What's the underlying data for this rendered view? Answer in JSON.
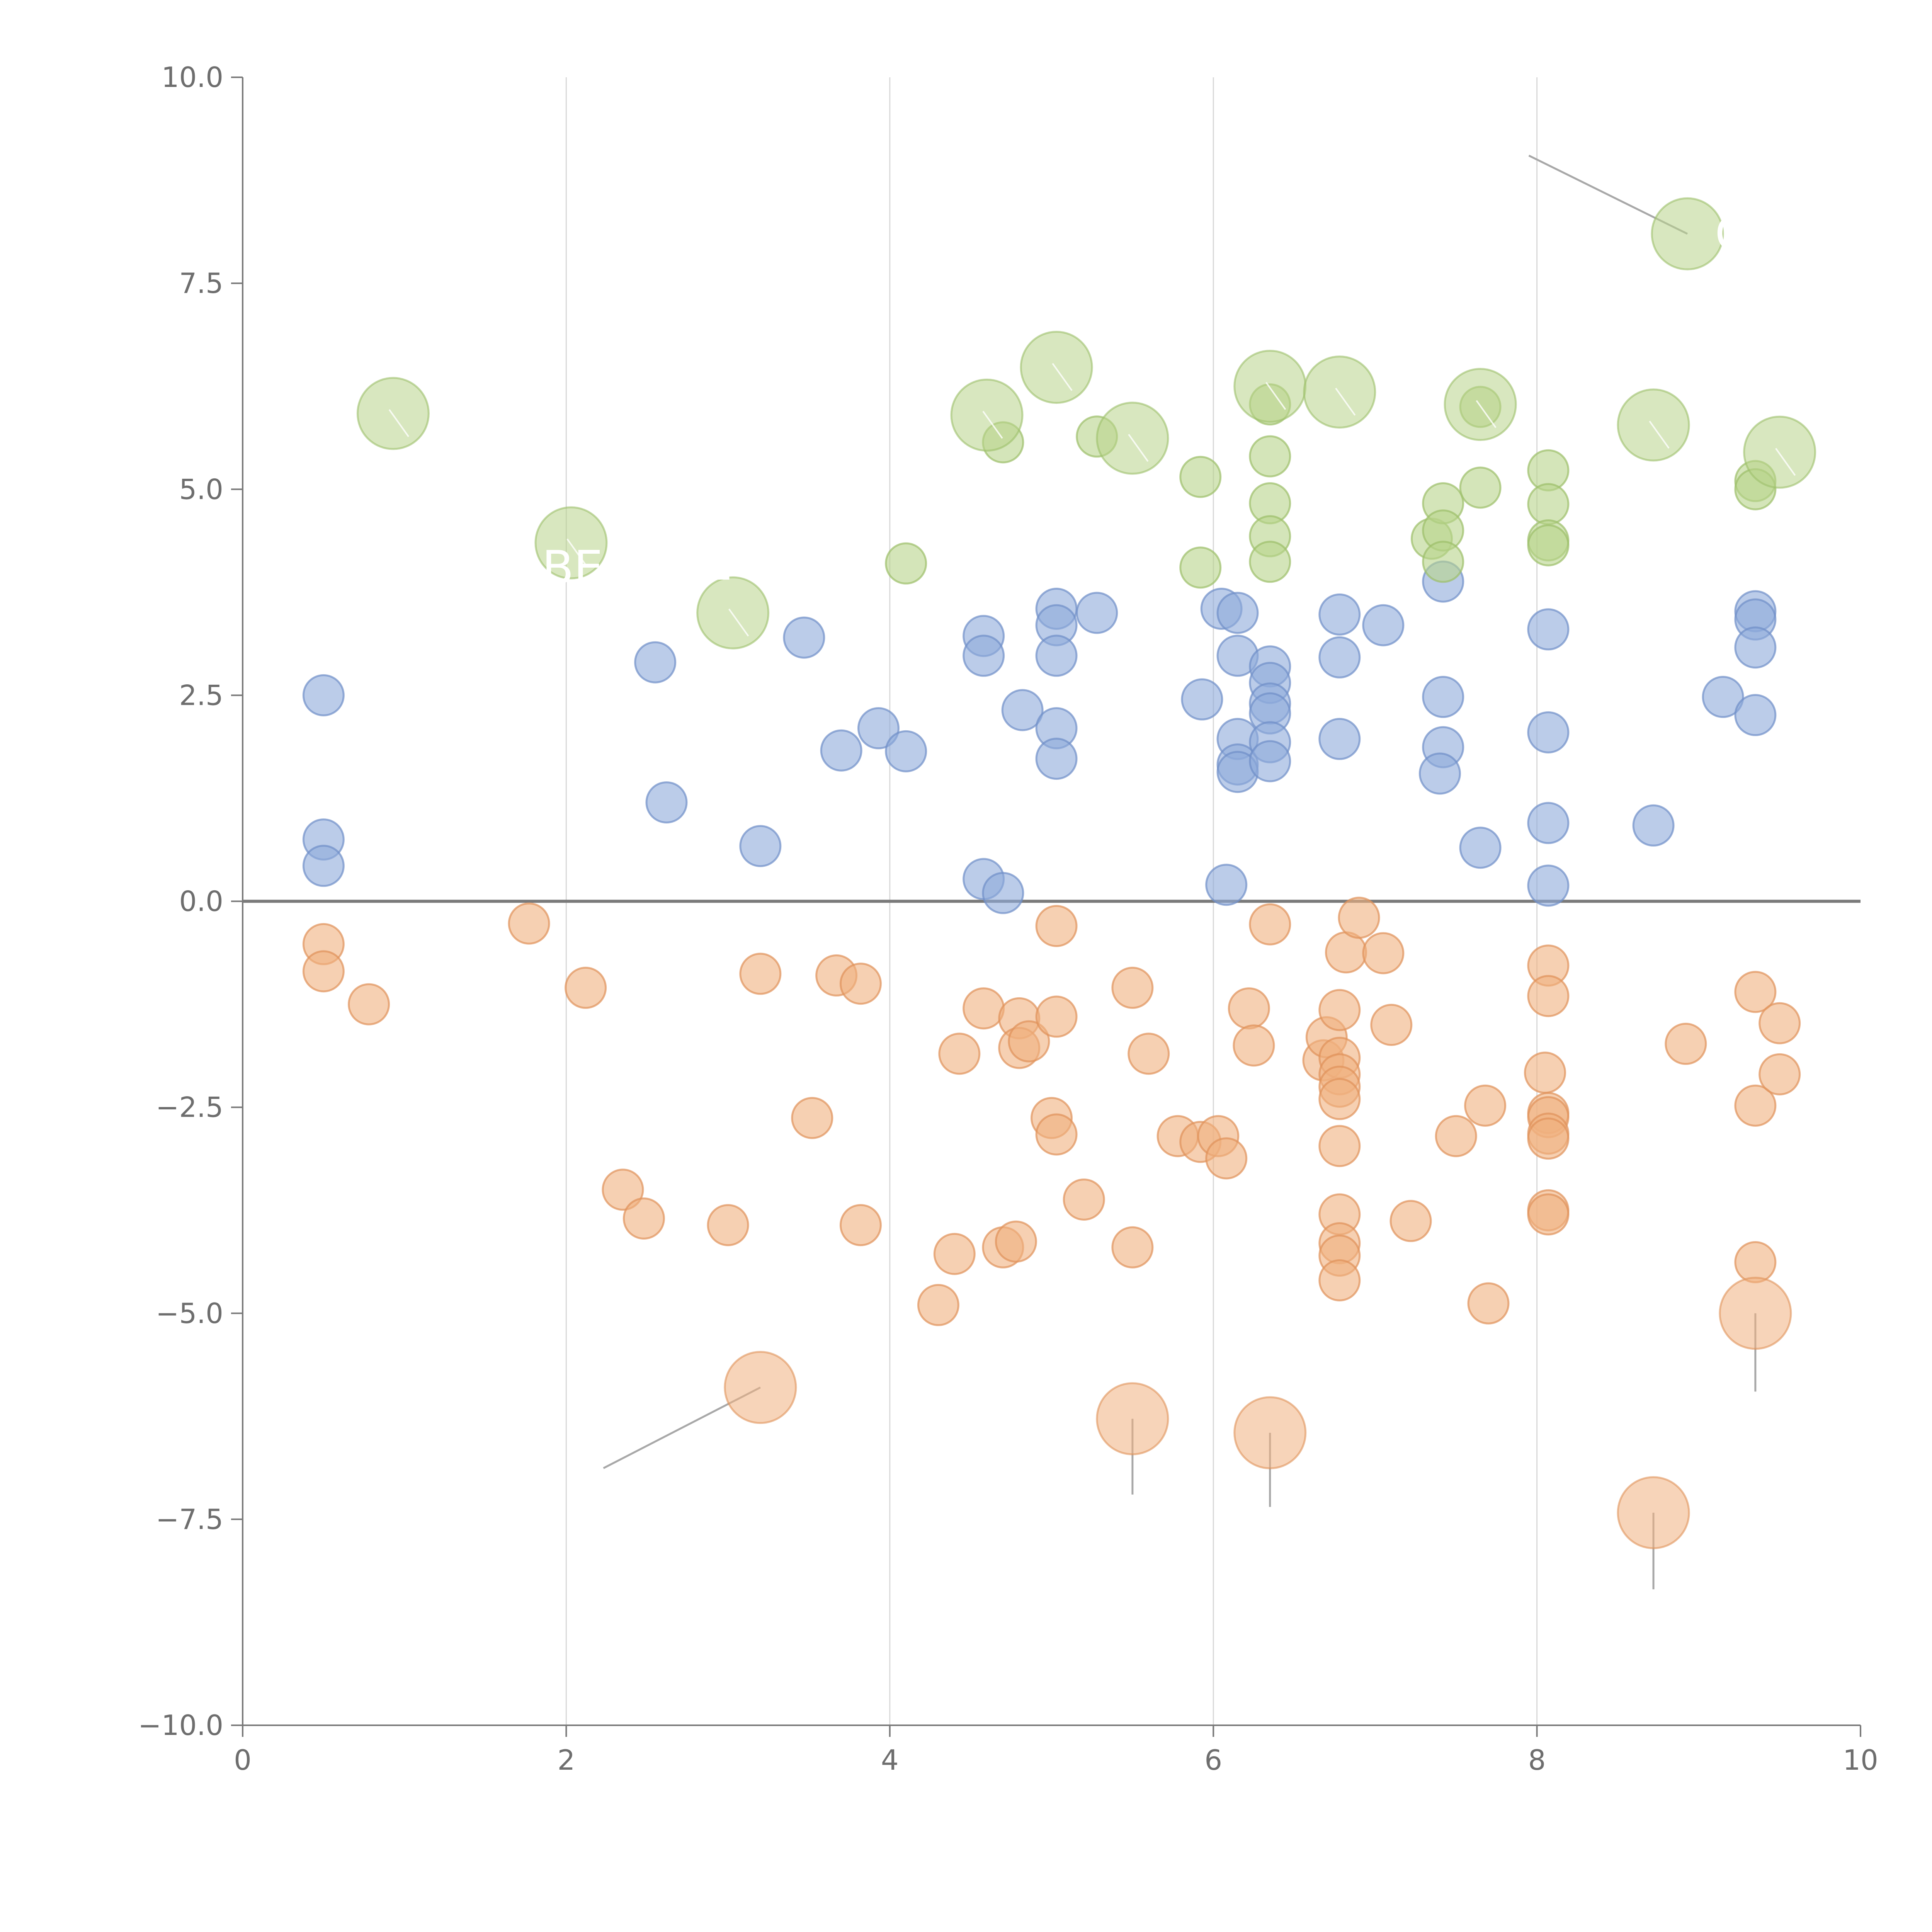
{
  "chart_data": {
    "type": "scatter",
    "title": "",
    "xlabel": "",
    "ylabel": "",
    "xlim": [
      0,
      10
    ],
    "ylim": [
      -10,
      10
    ],
    "x_ticks": [
      0,
      2,
      4,
      6,
      8,
      10
    ],
    "x_tick_labels": [
      "0",
      "2",
      "4",
      "6",
      "8",
      "10"
    ],
    "y_ticks": [
      10,
      7.5,
      5,
      2.5,
      0,
      -2.5,
      -5,
      -7.5,
      -10
    ],
    "y_tick_labels": [
      "10.0",
      "7.5",
      "5.0",
      "2.5",
      "0.0",
      "−2.5",
      "−5.0",
      "−7.5",
      "−10.0"
    ],
    "grid": "vertical",
    "reference_line_y": 0,
    "colors": {
      "blue": "#8eaadb",
      "blue_edge": "#6f8fc8",
      "orange": "#f0b07f",
      "orange_edge": "#e0925a",
      "green": "#b8d48a",
      "green_edge": "#9cbf6a",
      "leader": "#a8a8a8"
    },
    "series": [
      {
        "name": "blue",
        "color": "#8eaadb",
        "points": [
          [
            0.5,
            2.5
          ],
          [
            0.5,
            0.75
          ],
          [
            0.5,
            0.43
          ],
          [
            2.55,
            2.9
          ],
          [
            2.62,
            1.2
          ],
          [
            3.2,
            0.67
          ],
          [
            3.47,
            3.2
          ],
          [
            3.7,
            1.83
          ],
          [
            3.93,
            2.1
          ],
          [
            4.1,
            1.82
          ],
          [
            4.58,
            3.22
          ],
          [
            4.58,
            2.98
          ],
          [
            4.58,
            0.27
          ],
          [
            4.7,
            0.1
          ],
          [
            4.82,
            2.32
          ],
          [
            5.03,
            3.55
          ],
          [
            5.03,
            3.35
          ],
          [
            5.03,
            2.98
          ],
          [
            5.03,
            2.1
          ],
          [
            5.03,
            1.73
          ],
          [
            5.28,
            3.5
          ],
          [
            5.93,
            2.45
          ],
          [
            6.05,
            3.55
          ],
          [
            6.08,
            0.2
          ],
          [
            6.15,
            3.5
          ],
          [
            6.15,
            2.98
          ],
          [
            6.15,
            1.97
          ],
          [
            6.15,
            1.66
          ],
          [
            6.15,
            1.57
          ],
          [
            6.35,
            2.85
          ],
          [
            6.35,
            2.65
          ],
          [
            6.35,
            2.4
          ],
          [
            6.35,
            2.28
          ],
          [
            6.35,
            1.93
          ],
          [
            6.35,
            1.7
          ],
          [
            6.78,
            3.48
          ],
          [
            6.78,
            2.96
          ],
          [
            6.78,
            1.97
          ],
          [
            7.05,
            3.35
          ],
          [
            7.42,
            3.88
          ],
          [
            7.42,
            2.48
          ],
          [
            7.42,
            1.87
          ],
          [
            7.4,
            1.55
          ],
          [
            7.65,
            0.65
          ],
          [
            8.07,
            3.3
          ],
          [
            8.07,
            2.05
          ],
          [
            8.07,
            0.95
          ],
          [
            8.07,
            0.19
          ],
          [
            8.72,
            0.92
          ],
          [
            9.15,
            2.48
          ],
          [
            9.35,
            3.52
          ],
          [
            9.35,
            3.42
          ],
          [
            9.35,
            3.08
          ],
          [
            9.35,
            2.26
          ]
        ]
      },
      {
        "name": "orange",
        "color": "#f0b07f",
        "points": [
          [
            0.5,
            -0.52
          ],
          [
            0.5,
            -0.85
          ],
          [
            0.78,
            -1.25
          ],
          [
            1.77,
            -0.27
          ],
          [
            2.12,
            -1.05
          ],
          [
            2.35,
            -3.5
          ],
          [
            2.48,
            -3.85
          ],
          [
            3.0,
            -3.93
          ],
          [
            3.2,
            -0.88
          ],
          [
            3.52,
            -2.63
          ],
          [
            3.67,
            -0.9
          ],
          [
            3.82,
            -1.0
          ],
          [
            3.82,
            -3.93
          ],
          [
            4.3,
            -4.9
          ],
          [
            4.4,
            -4.28
          ],
          [
            4.43,
            -1.85
          ],
          [
            4.58,
            -1.3
          ],
          [
            4.7,
            -4.2
          ],
          [
            4.78,
            -4.13
          ],
          [
            4.8,
            -1.42
          ],
          [
            4.8,
            -1.78
          ],
          [
            4.86,
            -1.7
          ],
          [
            5.0,
            -2.63
          ],
          [
            5.03,
            -0.3
          ],
          [
            5.03,
            -1.4
          ],
          [
            5.03,
            -2.83
          ],
          [
            5.2,
            -3.62
          ],
          [
            5.5,
            -1.05
          ],
          [
            5.5,
            -4.2
          ],
          [
            5.6,
            -1.85
          ],
          [
            5.78,
            -2.85
          ],
          [
            5.92,
            -2.92
          ],
          [
            6.03,
            -2.85
          ],
          [
            6.08,
            -3.12
          ],
          [
            6.22,
            -1.3
          ],
          [
            6.25,
            -1.75
          ],
          [
            6.35,
            -0.28
          ],
          [
            6.68,
            -1.93
          ],
          [
            6.7,
            -1.65
          ],
          [
            6.78,
            -1.32
          ],
          [
            6.78,
            -1.9
          ],
          [
            6.78,
            -2.1
          ],
          [
            6.78,
            -2.25
          ],
          [
            6.78,
            -2.4
          ],
          [
            6.78,
            -2.97
          ],
          [
            6.78,
            -3.8
          ],
          [
            6.78,
            -4.15
          ],
          [
            6.78,
            -4.3
          ],
          [
            6.78,
            -4.6
          ],
          [
            6.82,
            -0.62
          ],
          [
            6.9,
            -0.2
          ],
          [
            7.05,
            -0.63
          ],
          [
            7.1,
            -1.5
          ],
          [
            7.22,
            -3.88
          ],
          [
            7.5,
            -2.85
          ],
          [
            7.68,
            -2.48
          ],
          [
            7.7,
            -4.88
          ],
          [
            8.05,
            -2.08
          ],
          [
            8.07,
            -0.78
          ],
          [
            8.07,
            -1.15
          ],
          [
            8.07,
            -2.57
          ],
          [
            8.07,
            -2.62
          ],
          [
            8.07,
            -2.82
          ],
          [
            8.07,
            -2.88
          ],
          [
            8.07,
            -3.75
          ],
          [
            8.07,
            -3.8
          ],
          [
            8.92,
            -1.73
          ],
          [
            9.35,
            -1.1
          ],
          [
            9.35,
            -2.48
          ],
          [
            9.35,
            -4.38
          ],
          [
            9.5,
            -1.48
          ],
          [
            9.5,
            -2.1
          ]
        ]
      },
      {
        "name": "green",
        "color": "#b8d48a",
        "points": [
          [
            4.1,
            4.1
          ],
          [
            4.7,
            5.57
          ],
          [
            5.28,
            5.64
          ],
          [
            5.92,
            5.15
          ],
          [
            5.92,
            4.05
          ],
          [
            6.35,
            6.03
          ],
          [
            6.35,
            5.4
          ],
          [
            6.35,
            4.83
          ],
          [
            6.35,
            4.43
          ],
          [
            6.35,
            4.12
          ],
          [
            7.35,
            4.4
          ],
          [
            7.42,
            4.83
          ],
          [
            7.42,
            4.5
          ],
          [
            7.42,
            4.12
          ],
          [
            7.65,
            6.0
          ],
          [
            7.65,
            5.02
          ],
          [
            8.07,
            5.23
          ],
          [
            8.07,
            4.82
          ],
          [
            8.07,
            4.38
          ],
          [
            8.07,
            4.32
          ],
          [
            9.35,
            5.1
          ],
          [
            9.35,
            5.0
          ]
        ]
      }
    ],
    "highlighted_points": [
      {
        "series": "green",
        "x": 0.93,
        "y": 5.92
      },
      {
        "series": "green",
        "x": 2.03,
        "y": 4.35
      },
      {
        "series": "green",
        "x": 3.03,
        "y": 3.5
      },
      {
        "series": "green",
        "x": 4.6,
        "y": 5.9
      },
      {
        "series": "green",
        "x": 5.03,
        "y": 6.48
      },
      {
        "series": "green",
        "x": 5.5,
        "y": 5.62
      },
      {
        "series": "green",
        "x": 6.35,
        "y": 6.25
      },
      {
        "series": "green",
        "x": 6.78,
        "y": 6.18
      },
      {
        "series": "green",
        "x": 7.65,
        "y": 6.03
      },
      {
        "series": "green",
        "x": 8.72,
        "y": 5.78
      },
      {
        "series": "green",
        "x": 8.93,
        "y": 8.1
      },
      {
        "series": "green",
        "x": 9.5,
        "y": 5.45
      },
      {
        "series": "orange",
        "x": 3.2,
        "y": -5.9
      },
      {
        "series": "orange",
        "x": 5.5,
        "y": -6.28
      },
      {
        "series": "orange",
        "x": 6.35,
        "y": -6.45
      },
      {
        "series": "orange",
        "x": 8.72,
        "y": -7.42
      },
      {
        "series": "orange",
        "x": 9.35,
        "y": -5.0
      }
    ],
    "annotations": [
      {
        "text": "C",
        "x": 9.1,
        "y": 8.1
      },
      {
        "text": "BE",
        "x": 1.85,
        "y": 4.05
      },
      {
        "text": "L",
        "x": 2.85,
        "y": 4.1
      }
    ]
  }
}
